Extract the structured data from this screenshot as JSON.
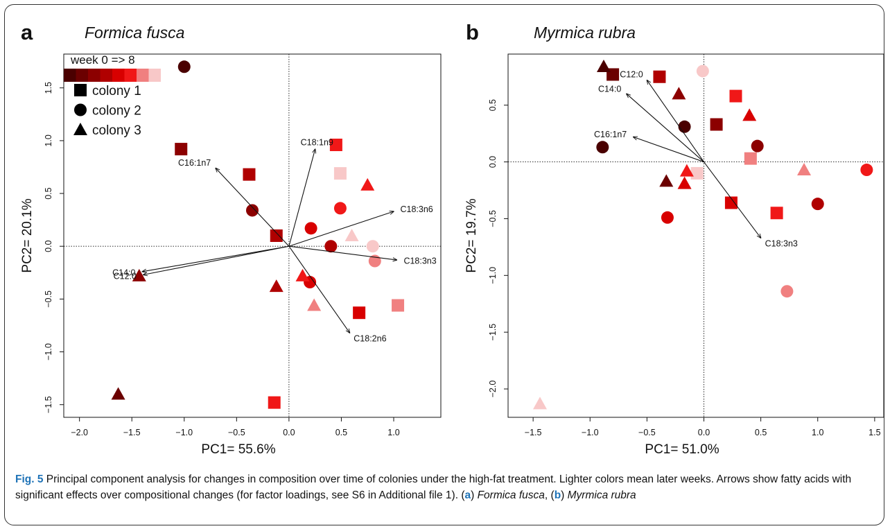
{
  "figure": {
    "caption_label": "Fig. 5",
    "caption_text": "Principal component analysis for changes in composition over time of colonies under the high-fat treatment. Lighter colors mean later weeks. Arrows show fatty acids with significant effects over compositional changes (for factor loadings, see S6 in Additional file 1). (",
    "caption_a": "a",
    "caption_sp_a": "Formica fusca",
    "caption_sep": ", (",
    "caption_b": "b",
    "caption_sp_b": "Myrmica rubra"
  },
  "palette": [
    "#4a0000",
    "#6b0000",
    "#8c0000",
    "#b00000",
    "#d80000",
    "#f01818",
    "#f08080",
    "#f8c8c8"
  ],
  "chart_data": [
    {
      "type": "scatter",
      "panel_label": "a",
      "title": "Formica fusca",
      "xlabel": "PC1= 55.6%",
      "ylabel": "PC2= 20.1%",
      "xlim": [
        -2.15,
        1.45
      ],
      "ylim": [
        -1.62,
        1.82
      ],
      "xticks": [
        -2.0,
        -1.5,
        -1.0,
        -0.5,
        0.0,
        0.5,
        1.0
      ],
      "xtick_labels": [
        "−2.0",
        "−1.5",
        "−1.0",
        "−0.5",
        "0.0",
        "0.5",
        "1.0"
      ],
      "yticks": [
        -1.5,
        -1.0,
        -0.5,
        0.0,
        0.5,
        1.0,
        1.5
      ],
      "ytick_labels": [
        "−1.5",
        "−1.0",
        "−0.5",
        "0.0",
        "0.5",
        "1.0",
        "1.5"
      ],
      "legend": {
        "placement": "top-left",
        "gradient_label": "week 0 => 8",
        "entries": [
          {
            "shape": "square",
            "label": "colony 1"
          },
          {
            "shape": "circle",
            "label": "colony 2"
          },
          {
            "shape": "triangle",
            "label": "colony 3"
          }
        ]
      },
      "arrows": [
        {
          "label": "C16:1n7",
          "x": -0.7,
          "y": 0.74
        },
        {
          "label": "C18:1n9",
          "x": 0.25,
          "y": 0.92
        },
        {
          "label": "C18:3n6",
          "x": 1.0,
          "y": 0.33
        },
        {
          "label": "C18:3n3",
          "x": 1.03,
          "y": -0.13
        },
        {
          "label": "C14:0",
          "x": -1.4,
          "y": -0.24
        },
        {
          "label": "C12:0",
          "x": -1.39,
          "y": -0.27
        },
        {
          "label": "C18:2n6",
          "x": 0.58,
          "y": -0.82
        }
      ],
      "points": [
        {
          "colony": 1,
          "week": 2,
          "x": -1.03,
          "y": 0.92
        },
        {
          "colony": 1,
          "week": 3,
          "x": -0.38,
          "y": 0.68
        },
        {
          "colony": 1,
          "week": 3,
          "x": -0.12,
          "y": 0.1
        },
        {
          "colony": 1,
          "week": 4,
          "x": 0.67,
          "y": -0.63
        },
        {
          "colony": 1,
          "week": 5,
          "x": 0.45,
          "y": 0.96
        },
        {
          "colony": 1,
          "week": 5,
          "x": -0.14,
          "y": -1.48
        },
        {
          "colony": 1,
          "week": 6,
          "x": 1.04,
          "y": -0.56
        },
        {
          "colony": 1,
          "week": 7,
          "x": 0.49,
          "y": 0.69
        },
        {
          "colony": 2,
          "week": 0,
          "x": -1.0,
          "y": 1.7
        },
        {
          "colony": 2,
          "week": 2,
          "x": -0.35,
          "y": 0.34
        },
        {
          "colony": 2,
          "week": 3,
          "x": 0.4,
          "y": 0.0
        },
        {
          "colony": 2,
          "week": 4,
          "x": 0.21,
          "y": 0.17
        },
        {
          "colony": 2,
          "week": 4,
          "x": 0.2,
          "y": -0.34
        },
        {
          "colony": 2,
          "week": 5,
          "x": 0.49,
          "y": 0.36
        },
        {
          "colony": 2,
          "week": 6,
          "x": 0.82,
          "y": -0.14
        },
        {
          "colony": 2,
          "week": 7,
          "x": 0.8,
          "y": 0.0
        },
        {
          "colony": 3,
          "week": 1,
          "x": -1.63,
          "y": -1.4
        },
        {
          "colony": 3,
          "week": 2,
          "x": -1.43,
          "y": -0.28
        },
        {
          "colony": 3,
          "week": 3,
          "x": -0.12,
          "y": -0.38
        },
        {
          "colony": 3,
          "week": 5,
          "x": 0.13,
          "y": -0.28
        },
        {
          "colony": 3,
          "week": 5,
          "x": 0.75,
          "y": 0.58
        },
        {
          "colony": 3,
          "week": 6,
          "x": 0.24,
          "y": -0.56
        },
        {
          "colony": 3,
          "week": 7,
          "x": 0.6,
          "y": 0.1
        }
      ]
    },
    {
      "type": "scatter",
      "panel_label": "b",
      "title": "Myrmica rubra",
      "xlabel": "PC1= 51.0%",
      "ylabel": "PC2= 19.7%",
      "xlim": [
        -1.72,
        1.58
      ],
      "ylim": [
        -2.25,
        0.95
      ],
      "xticks": [
        -1.5,
        -1.0,
        -0.5,
        0.0,
        0.5,
        1.0,
        1.5
      ],
      "xtick_labels": [
        "−1.5",
        "−1.0",
        "−0.5",
        "0.0",
        "0.5",
        "1.0",
        "1.5"
      ],
      "yticks": [
        -2.0,
        -1.5,
        -1.0,
        -0.5,
        0.0,
        0.5
      ],
      "ytick_labels": [
        "−2.0",
        "−1.5",
        "−1.0",
        "−0.5",
        "0.0",
        "0.5"
      ],
      "arrows": [
        {
          "label": "C12:0",
          "x": -0.5,
          "y": 0.72
        },
        {
          "label": "C14:0",
          "x": -0.68,
          "y": 0.6
        },
        {
          "label": "C16:1n7",
          "x": -0.62,
          "y": 0.22
        },
        {
          "label": "C18:3n3",
          "x": 0.5,
          "y": -0.67
        }
      ],
      "points": [
        {
          "colony": 1,
          "week": 1,
          "x": -0.8,
          "y": 0.77
        },
        {
          "colony": 1,
          "week": 2,
          "x": 0.11,
          "y": 0.33
        },
        {
          "colony": 1,
          "week": 3,
          "x": -0.39,
          "y": 0.75
        },
        {
          "colony": 1,
          "week": 4,
          "x": 0.24,
          "y": -0.36
        },
        {
          "colony": 1,
          "week": 5,
          "x": 0.28,
          "y": 0.58
        },
        {
          "colony": 1,
          "week": 5,
          "x": 0.64,
          "y": -0.45
        },
        {
          "colony": 1,
          "week": 6,
          "x": 0.41,
          "y": 0.03
        },
        {
          "colony": 1,
          "week": 7,
          "x": -0.06,
          "y": -0.1
        },
        {
          "colony": 2,
          "week": 0,
          "x": -0.89,
          "y": 0.13
        },
        {
          "colony": 2,
          "week": 0,
          "x": -0.17,
          "y": 0.31
        },
        {
          "colony": 2,
          "week": 2,
          "x": 0.47,
          "y": 0.14
        },
        {
          "colony": 2,
          "week": 3,
          "x": 1.0,
          "y": -0.37
        },
        {
          "colony": 2,
          "week": 4,
          "x": -0.32,
          "y": -0.49
        },
        {
          "colony": 2,
          "week": 5,
          "x": 1.43,
          "y": -0.07
        },
        {
          "colony": 2,
          "week": 6,
          "x": 0.73,
          "y": -1.14
        },
        {
          "colony": 2,
          "week": 7,
          "x": -0.01,
          "y": 0.8
        },
        {
          "colony": 3,
          "week": 0,
          "x": -0.88,
          "y": 0.84
        },
        {
          "colony": 3,
          "week": 1,
          "x": -0.33,
          "y": -0.17
        },
        {
          "colony": 3,
          "week": 2,
          "x": -0.22,
          "y": 0.6
        },
        {
          "colony": 3,
          "week": 4,
          "x": -0.17,
          "y": -0.19
        },
        {
          "colony": 3,
          "week": 4,
          "x": 0.4,
          "y": 0.41
        },
        {
          "colony": 3,
          "week": 5,
          "x": -0.15,
          "y": -0.08
        },
        {
          "colony": 3,
          "week": 6,
          "x": 0.88,
          "y": -0.07
        },
        {
          "colony": 3,
          "week": 7,
          "x": -1.44,
          "y": -2.13
        }
      ]
    }
  ]
}
